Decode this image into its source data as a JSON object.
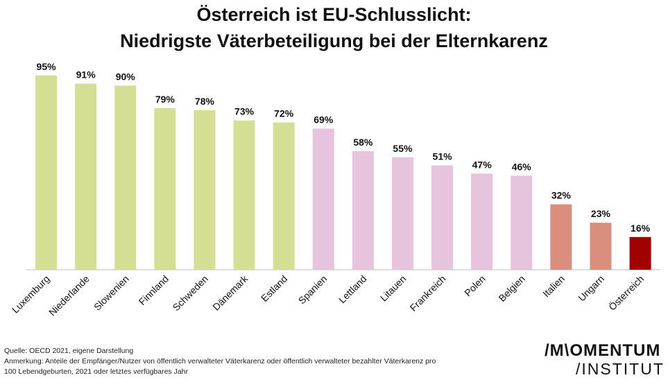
{
  "chart_data": {
    "type": "bar",
    "title": "Österreich ist EU-Schlusslicht:",
    "subtitle": "Niedrigste Väterbeteiligung bei der Elternkarenz",
    "categories": [
      "Luxemburg",
      "Niederlande",
      "Slowenien",
      "Finnland",
      "Schweden",
      "Dänemark",
      "Estland",
      "Spanien",
      "Lettland",
      "Litauen",
      "Frankreich",
      "Polen",
      "Belgien",
      "Italien",
      "Ungarn",
      "Österreich"
    ],
    "values": [
      95,
      91,
      90,
      79,
      78,
      73,
      72,
      69,
      58,
      55,
      51,
      47,
      46,
      32,
      23,
      16
    ],
    "value_labels": [
      "95%",
      "91%",
      "90%",
      "79%",
      "78%",
      "73%",
      "72%",
      "69%",
      "58%",
      "55%",
      "51%",
      "47%",
      "46%",
      "32%",
      "23%",
      "16%"
    ],
    "colors": [
      "#d4df94",
      "#d4df94",
      "#d4df94",
      "#d4df94",
      "#d4df94",
      "#d4df94",
      "#d4df94",
      "#e6c4de",
      "#e6c4de",
      "#e6c4de",
      "#e6c4de",
      "#e6c4de",
      "#e6c4de",
      "#d98e7e",
      "#d98e7e",
      "#a30000"
    ],
    "ylim": [
      0,
      100
    ],
    "grid": false,
    "legend": "none"
  },
  "footer": {
    "source": "Quelle: OECD 2021, eigene Darstellung",
    "note_line1": "Anmerkung: Anteile der Empfänger/Nutzer von öffentlich verwalteter Väterkarenz oder öffentlich verwalteter bezahlter Väterkarenz pro",
    "note_line2": "100 Lebendgeburten, 2021 oder letztes verfügbares Jahr"
  },
  "logo": {
    "line1": "/M\\OMENTUM",
    "line2": "/INSTITUT"
  }
}
